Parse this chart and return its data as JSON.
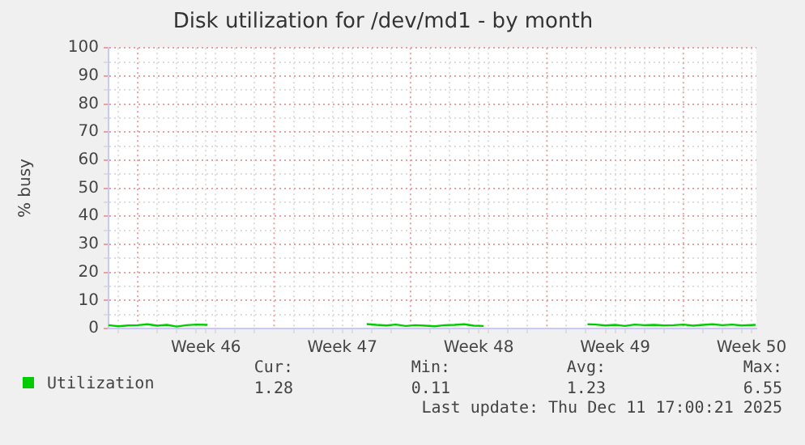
{
  "chart_data": {
    "type": "line",
    "title": "Disk utilization for /dev/md1 - by month",
    "ylabel": "% busy",
    "x": [
      "2025-11-08T12:00",
      "2025-11-09",
      "2025-11-09T12:00",
      "2025-11-10",
      "2025-11-10T12:00",
      "2025-11-11",
      "2025-11-11T12:00",
      "2025-11-12",
      "2025-11-12T12:00",
      "2025-11-13",
      "2025-11-13T14:00",
      "2025-11-14",
      "2025-11-21T18:00",
      "2025-11-22T06:00",
      "2025-11-22T18:00",
      "2025-11-23T06:00",
      "2025-11-23T18:00",
      "2025-11-24T06:00",
      "2025-11-24T18:00",
      "2025-11-25T06:00",
      "2025-11-25T18:00",
      "2025-11-26T06:00",
      "2025-11-26T18:00",
      "2025-11-27T06:00",
      "2025-11-27T18:00",
      "2025-11-28",
      "2025-12-03T02:00",
      "2025-12-03T12:00",
      "2025-12-04",
      "2025-12-04T12:00",
      "2025-12-05",
      "2025-12-05T12:00",
      "2025-12-06",
      "2025-12-06T12:00",
      "2025-12-07",
      "2025-12-07T12:00",
      "2025-12-08",
      "2025-12-08T12:00",
      "2025-12-09",
      "2025-12-09T12:00",
      "2025-12-10",
      "2025-12-10T12:00",
      "2025-12-11",
      "2025-12-11T17:00"
    ],
    "series": [
      {
        "name": "Utilization",
        "color": "#00cc00",
        "values": [
          1.2,
          0.8,
          1.1,
          1.2,
          1.5,
          1,
          1.3,
          0.7,
          1.2,
          1.4,
          1.3,
          null,
          1.6,
          1.3,
          1.1,
          1.4,
          0.9,
          1.2,
          1,
          0.8,
          1.2,
          1.3,
          1.5,
          1,
          0.9,
          null,
          1.5,
          1.4,
          1.1,
          1.3,
          0.9,
          1.4,
          1.2,
          1.3,
          1.1,
          1.2,
          1.4,
          1,
          1.3,
          1.5,
          1.2,
          1.4,
          1.1,
          1.3
        ]
      }
    ],
    "xlim": [
      "2025-11-08T12:00",
      "2025-12-11T18:00"
    ],
    "xticks": [
      {
        "value": "2025-11-09",
        "label": null
      },
      {
        "value": "2025-11-11",
        "label": null
      },
      {
        "value": "2025-11-12",
        "label": null
      },
      {
        "value": "2025-11-13",
        "label": null
      },
      {
        "value": "2025-11-13T12:00",
        "label": "Week 46"
      },
      {
        "value": "2025-11-14",
        "label": null
      },
      {
        "value": "2025-11-15",
        "label": null
      },
      {
        "value": "2025-11-16",
        "label": null
      },
      {
        "value": "2025-11-18",
        "label": null
      },
      {
        "value": "2025-11-19",
        "label": null
      },
      {
        "value": "2025-11-20",
        "label": null
      },
      {
        "value": "2025-11-20T12:00",
        "label": "Week 47"
      },
      {
        "value": "2025-11-21",
        "label": null
      },
      {
        "value": "2025-11-22",
        "label": null
      },
      {
        "value": "2025-11-23",
        "label": null
      },
      {
        "value": "2025-11-25",
        "label": null
      },
      {
        "value": "2025-11-26",
        "label": null
      },
      {
        "value": "2025-11-27",
        "label": null
      },
      {
        "value": "2025-11-27T12:00",
        "label": "Week 48"
      },
      {
        "value": "2025-11-28",
        "label": null
      },
      {
        "value": "2025-11-29",
        "label": null
      },
      {
        "value": "2025-11-30",
        "label": null
      },
      {
        "value": "2025-12-02",
        "label": null
      },
      {
        "value": "2025-12-03",
        "label": null
      },
      {
        "value": "2025-12-04",
        "label": null
      },
      {
        "value": "2025-12-04T12:00",
        "label": "Week 49"
      },
      {
        "value": "2025-12-05",
        "label": null
      },
      {
        "value": "2025-12-06",
        "label": null
      },
      {
        "value": "2025-12-07",
        "label": null
      },
      {
        "value": "2025-12-09",
        "label": null
      },
      {
        "value": "2025-12-10",
        "label": null
      },
      {
        "value": "2025-12-11",
        "label": null
      },
      {
        "value": "2025-12-11T12:00",
        "label": "Week 50"
      }
    ],
    "ylim": [
      0,
      100
    ],
    "yticks": [
      0,
      {
        "value": 5,
        "label": null
      },
      10,
      {
        "value": 15,
        "label": null
      },
      20,
      {
        "value": 25,
        "label": null
      },
      30,
      {
        "value": 35,
        "label": null
      },
      40,
      {
        "value": 45,
        "label": null
      },
      50,
      {
        "value": 55,
        "label": null
      },
      60,
      {
        "value": 65,
        "label": null
      },
      70,
      {
        "value": 75,
        "label": null
      },
      80,
      {
        "value": 85,
        "label": null
      },
      90,
      {
        "value": 95,
        "label": null
      },
      100
    ],
    "ref_lines": [
      {
        "axis": "x",
        "value": "2025-11-10",
        "color": "#e8a0a0",
        "line_style": "dotted"
      },
      {
        "axis": "x",
        "value": "2025-11-17",
        "color": "#e8a0a0",
        "line_style": "dotted"
      },
      {
        "axis": "x",
        "value": "2025-11-24",
        "color": "#e8a0a0",
        "line_style": "dotted"
      },
      {
        "axis": "x",
        "value": "2025-12-01",
        "color": "#e8a0a0",
        "line_style": "dotted"
      },
      {
        "axis": "x",
        "value": "2025-12-08",
        "color": "#e8a0a0",
        "line_style": "dotted"
      }
    ],
    "grid": true,
    "legend": "bottom left",
    "marker": "none",
    "line_style": "solid",
    "annotations": [
      "Cur:",
      "Min:",
      "Avg:",
      "Max:",
      "1.28",
      "0.11",
      "1.23",
      "6.55",
      "Last update: Thu Dec 11 17:00:21 2025"
    ]
  }
}
